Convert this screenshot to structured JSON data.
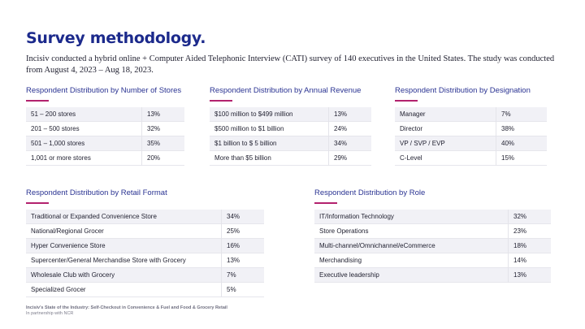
{
  "title": "Survey methodology.",
  "intro": "Incisiv conducted a hybrid online + Computer Aided Telephonic Interview (CATI) survey of 140 executives in the United States. The study was conducted from August 4, 2023 – Aug 18, 2023.",
  "sections": [
    {
      "title": "Respondent Distribution by Number of Stores",
      "rows": [
        {
          "label": "51 – 200 stores",
          "value": "13%"
        },
        {
          "label": "201 – 500 stores",
          "value": "32%"
        },
        {
          "label": "501 – 1,000 stores",
          "value": "35%"
        },
        {
          "label": "1,001 or more stores",
          "value": "20%"
        }
      ]
    },
    {
      "title": "Respondent Distribution by Annual Revenue",
      "rows": [
        {
          "label": "$100 million to $499 million",
          "value": "13%"
        },
        {
          "label": "$500 million to $1 billion",
          "value": "24%"
        },
        {
          "label": "$1 billion to $ 5 billion",
          "value": "34%"
        },
        {
          "label": "More than $5 billion",
          "value": "29%"
        }
      ]
    },
    {
      "title": "Respondent Distribution by Designation",
      "rows": [
        {
          "label": "Manager",
          "value": "7%"
        },
        {
          "label": "Director",
          "value": "38%"
        },
        {
          "label": "VP / SVP / EVP",
          "value": "40%"
        },
        {
          "label": "C-Level",
          "value": "15%"
        }
      ]
    },
    {
      "title": "Respondent Distribution by Retail Format",
      "rows": [
        {
          "label": "Traditional or Expanded Convenience Store",
          "value": "34%"
        },
        {
          "label": "National/Regional Grocer",
          "value": "25%"
        },
        {
          "label": "Hyper Convenience Store",
          "value": "16%"
        },
        {
          "label": "Supercenter/General Merchandise Store with Grocery",
          "value": "13%"
        },
        {
          "label": "Wholesale Club with Grocery",
          "value": "7%"
        },
        {
          "label": "Specialized Grocer",
          "value": "5%"
        }
      ]
    },
    {
      "title": "Respondent Distribution by Role",
      "rows": [
        {
          "label": "IT/Information Technology",
          "value": "32%"
        },
        {
          "label": "Store Operations",
          "value": "23%"
        },
        {
          "label": "Multi-channel/Omnichannel/eCommerce",
          "value": "18%"
        },
        {
          "label": "Merchandising",
          "value": "14%"
        },
        {
          "label": "Executive leadership",
          "value": "13%"
        }
      ]
    }
  ],
  "footer": {
    "line1": "Incisiv's State of the Industry: Self-Checkout in Convenience & Fuel and Food & Grocery Retail",
    "line2": "In partnership with NCR"
  },
  "colors": {
    "title": "#1c2a8c",
    "section_title": "#2a3392",
    "accent_rule": "#b3226e",
    "row_alt": "#f1f1f6"
  }
}
